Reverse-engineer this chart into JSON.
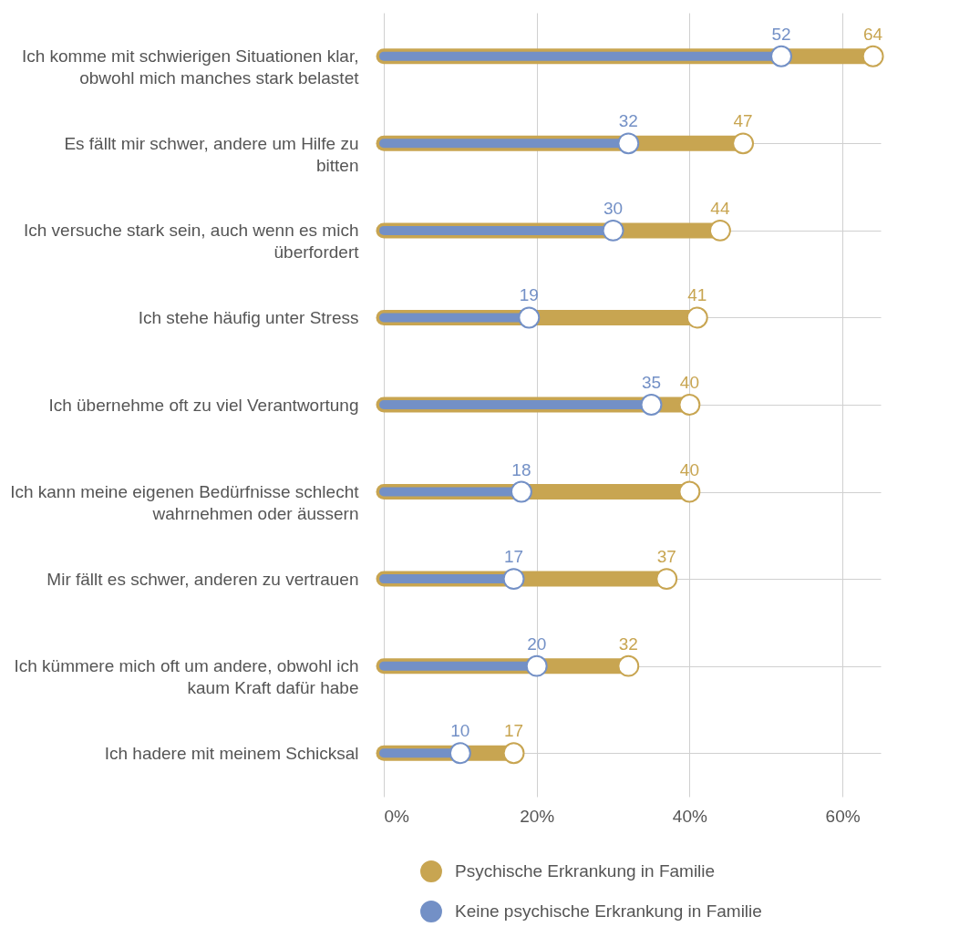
{
  "chart_data": {
    "type": "lollipop",
    "orientation": "horizontal",
    "categories": [
      "Ich komme mit schwierigen Situationen klar, obwohl mich manches stark belastet",
      "Es fällt mir schwer, andere um Hilfe zu bitten",
      "Ich versuche stark sein, auch wenn es mich überfordert",
      "Ich stehe häufig unter Stress",
      "Ich übernehme oft zu viel Verantwortung",
      "Ich kann meine eigenen Bedürfnisse schlecht wahrnehmen oder äussern",
      "Mir fällt es schwer, anderen zu vertrauen",
      "Ich kümmere mich oft um andere, obwohl ich kaum Kraft dafür habe",
      "Ich hadere mit meinem Schicksal"
    ],
    "series": [
      {
        "name": "Psychische Erkrankung in Familie",
        "color": "#c8a551",
        "values": [
          64,
          47,
          44,
          41,
          40,
          40,
          37,
          32,
          17
        ]
      },
      {
        "name": "Keine psychische Erkrankung in Familie",
        "color": "#7390c6",
        "values": [
          52,
          32,
          30,
          19,
          35,
          18,
          17,
          20,
          10
        ]
      }
    ],
    "xlim": [
      0,
      65
    ],
    "xticks": [
      {
        "value": 0,
        "label": "0%"
      },
      {
        "value": 20,
        "label": "20%"
      },
      {
        "value": 40,
        "label": "40%"
      },
      {
        "value": 60,
        "label": "60%"
      }
    ],
    "grid": true,
    "legend": "bottom",
    "marker": "circle",
    "data_labels": true
  }
}
